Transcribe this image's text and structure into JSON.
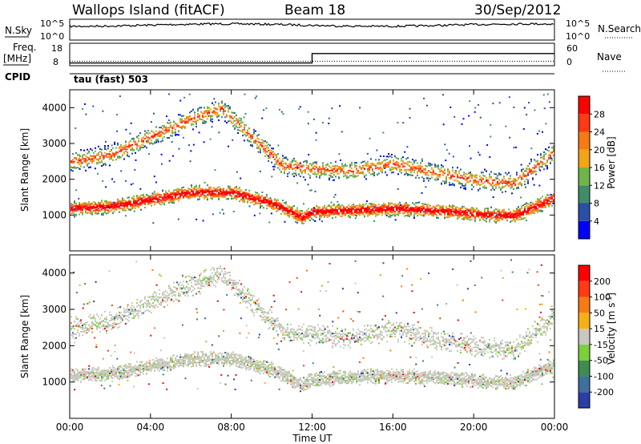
{
  "header": {
    "title": "Wallops Island (fitACF)",
    "beam": "Beam 18",
    "date": "30/Sep/2012"
  },
  "nsky_panel": {
    "label": "N.Sky",
    "ticks_left": [
      "10^5",
      "10^0"
    ],
    "ticks_right": [
      "10^5",
      "10^0"
    ],
    "right_label": "N.Search"
  },
  "freq_panel": {
    "label_top": "Freq.",
    "label_unit": "[MHz]",
    "ticks_left": [
      "18",
      "8"
    ],
    "ticks_right": [
      "60",
      "0"
    ],
    "right_label": "Nave",
    "cpid_label": "CPID",
    "cpid_value": "tau (fast) 503",
    "freq_steps": [
      {
        "from_hr": 0,
        "to_hr": 12,
        "freq_mhz": 10.3
      },
      {
        "from_hr": 12,
        "to_hr": 24,
        "freq_mhz": 14.5
      }
    ]
  },
  "time_axis": {
    "label": "Time UT",
    "ticks": [
      "00:00",
      "04:00",
      "08:00",
      "12:00",
      "16:00",
      "20:00",
      "00:00"
    ]
  },
  "range_axis": {
    "label": "Slant Range [km]",
    "ticks": [
      "1000",
      "2000",
      "3000",
      "4000"
    ]
  },
  "power_colorbar": {
    "label": "Power [dB]",
    "ticks": [
      "4",
      "8",
      "12",
      "16",
      "20",
      "24",
      "28"
    ],
    "colors": [
      "#0000ff",
      "#2a4fa8",
      "#3f8c6a",
      "#6fb54a",
      "#f2a516",
      "#f77a14",
      "#ff3a14",
      "#ff0000"
    ]
  },
  "velocity_colorbar": {
    "label": "Velocity [m s",
    "label_sup": "-1",
    "label_end": "]",
    "ticks": [
      "200",
      "100",
      "50",
      "15",
      "-15",
      "-50",
      "-100",
      "-200"
    ],
    "colors": [
      "#2a3ea8",
      "#3f6f9c",
      "#3f8c50",
      "#7ed03a",
      "#c8c8c0",
      "#f7b014",
      "#f77a14",
      "#ff3a14",
      "#ff0000"
    ]
  },
  "chart_data": {
    "type": "heatmap",
    "x_unit": "hours UT",
    "xlim": [
      0,
      24
    ],
    "ylim": [
      0,
      4500
    ],
    "backscatter_bands": [
      {
        "name": "near_band",
        "points": [
          [
            0,
            1200
          ],
          [
            2,
            1250
          ],
          [
            4,
            1450
          ],
          [
            6,
            1650
          ],
          [
            8,
            1650
          ],
          [
            10,
            1350
          ],
          [
            11.5,
            950
          ],
          [
            12,
            1100
          ],
          [
            14,
            1150
          ],
          [
            16,
            1200
          ],
          [
            18,
            1150
          ],
          [
            20,
            1050
          ],
          [
            22,
            1000
          ],
          [
            24,
            1500
          ]
        ]
      },
      {
        "name": "far_band",
        "points": [
          [
            0,
            2500
          ],
          [
            2,
            2700
          ],
          [
            4,
            3200
          ],
          [
            6,
            3700
          ],
          [
            7.5,
            4000
          ],
          [
            9,
            3200
          ],
          [
            10.5,
            2400
          ],
          [
            12,
            2300
          ],
          [
            14,
            2250
          ],
          [
            16,
            2450
          ],
          [
            18,
            2200
          ],
          [
            20,
            2000
          ],
          [
            22,
            1900
          ],
          [
            24,
            2800
          ]
        ]
      }
    ],
    "nsky_level": 0.72,
    "nave_level": 0.2
  }
}
